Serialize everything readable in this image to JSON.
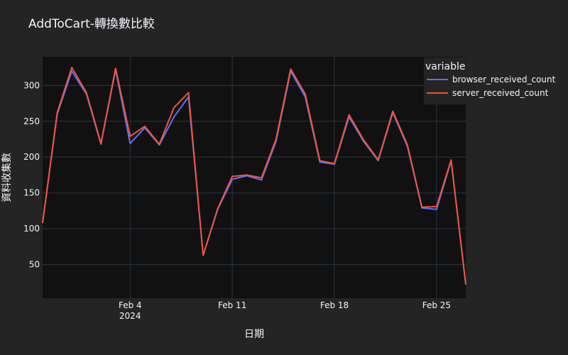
{
  "chart_data": {
    "type": "line",
    "title": "AddToCart-轉換數比較",
    "xlabel": "日期",
    "ylabel": "資料收集數",
    "x": [
      "2024-01-29",
      "2024-01-30",
      "2024-01-31",
      "2024-02-01",
      "2024-02-02",
      "2024-02-03",
      "2024-02-04",
      "2024-02-05",
      "2024-02-06",
      "2024-02-07",
      "2024-02-08",
      "2024-02-09",
      "2024-02-10",
      "2024-02-11",
      "2024-02-12",
      "2024-02-13",
      "2024-02-14",
      "2024-02-15",
      "2024-02-16",
      "2024-02-17",
      "2024-02-18",
      "2024-02-19",
      "2024-02-20",
      "2024-02-21",
      "2024-02-22",
      "2024-02-23",
      "2024-02-24",
      "2024-02-25",
      "2024-02-26",
      "2024-02-27"
    ],
    "x_ticks": [
      {
        "value": "2024-02-04",
        "label": "Feb 4",
        "sublabel": "2024"
      },
      {
        "value": "2024-02-11",
        "label": "Feb 11",
        "sublabel": ""
      },
      {
        "value": "2024-02-18",
        "label": "Feb 18",
        "sublabel": ""
      },
      {
        "value": "2024-02-25",
        "label": "Feb 25",
        "sublabel": ""
      }
    ],
    "y_ticks": [
      50,
      100,
      150,
      200,
      250,
      300
    ],
    "ylim": [
      3,
      340
    ],
    "legend": {
      "title": "variable",
      "placement": "top-right"
    },
    "series": [
      {
        "name": "browser_received_count",
        "color": "#636efa",
        "values": [
          108,
          260,
          320,
          288,
          218,
          322,
          219,
          241,
          217,
          256,
          284,
          63,
          127,
          169,
          174,
          168,
          222,
          320,
          284,
          193,
          190,
          256,
          222,
          195,
          262,
          215,
          129,
          127,
          195,
          22
        ]
      },
      {
        "name": "server_received_count",
        "color": "#ef553b",
        "values": [
          108,
          262,
          325,
          290,
          219,
          324,
          229,
          243,
          218,
          269,
          290,
          63,
          128,
          173,
          175,
          171,
          225,
          323,
          288,
          195,
          191,
          259,
          224,
          196,
          264,
          217,
          130,
          131,
          196,
          22
        ]
      }
    ],
    "grid": true,
    "background": "#111111",
    "paper_background": "#242424"
  }
}
